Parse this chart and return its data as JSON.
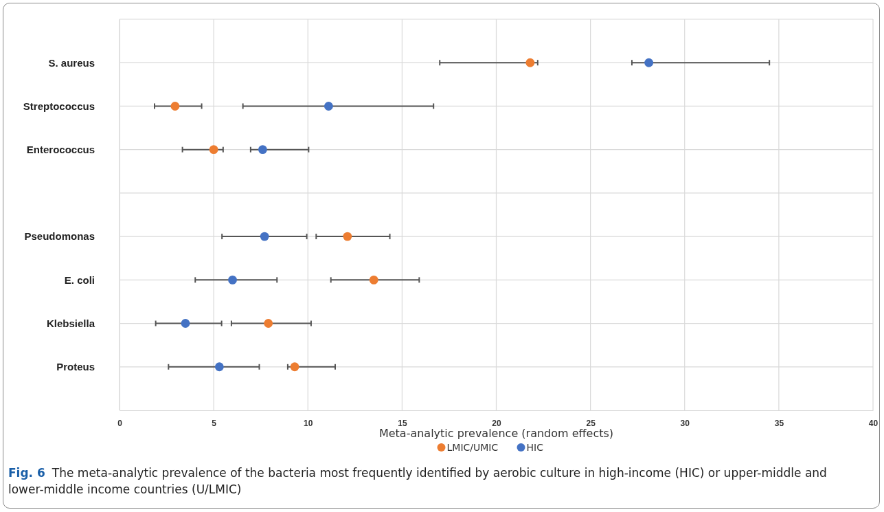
{
  "chart_data": {
    "type": "scatter",
    "orientation": "horizontal",
    "xlabel": "Meta-analytic prevalence (random effects)",
    "categories": [
      "S. aureus",
      "Streptococcus",
      "Enterococcus",
      null,
      "Pseudomonas",
      "E. coli",
      "Klebsiella",
      "Proteus"
    ],
    "series": [
      {
        "name": "LMIC/UMIC",
        "color": "#ed7d31",
        "values": [
          21.8,
          2.95,
          5.0,
          null,
          12.1,
          13.5,
          7.9,
          9.3
        ],
        "errors": [
          [
            17.0,
            22.2
          ],
          [
            1.86,
            4.36
          ],
          [
            3.34,
            5.5
          ],
          null,
          [
            10.44,
            14.35
          ],
          [
            11.22,
            15.91
          ],
          [
            5.94,
            10.17
          ],
          [
            8.93,
            11.45
          ]
        ]
      },
      {
        "name": "HIC",
        "color": "#4472c4",
        "values": [
          28.1,
          11.1,
          7.6,
          null,
          7.7,
          6.0,
          3.5,
          5.3
        ],
        "errors": [
          [
            27.2,
            34.5
          ],
          [
            6.55,
            16.67
          ],
          [
            6.96,
            10.04
          ],
          null,
          [
            5.44,
            9.94
          ],
          [
            4.02,
            8.36
          ],
          [
            1.92,
            5.42
          ],
          [
            2.6,
            7.42
          ]
        ]
      }
    ],
    "xlim": [
      0,
      40
    ],
    "xticks": [
      0,
      5,
      10,
      15,
      20,
      25,
      30,
      35,
      40
    ],
    "grid": true,
    "legend": "bottom",
    "marker": "circle",
    "annotations": [
      "Fig. 6",
      "The meta-analytic prevalence of the bacteria most frequently identified by aerobic culture in high-income (HIC) or upper-middle and lower-middle income countries (U/LMIC)"
    ]
  }
}
